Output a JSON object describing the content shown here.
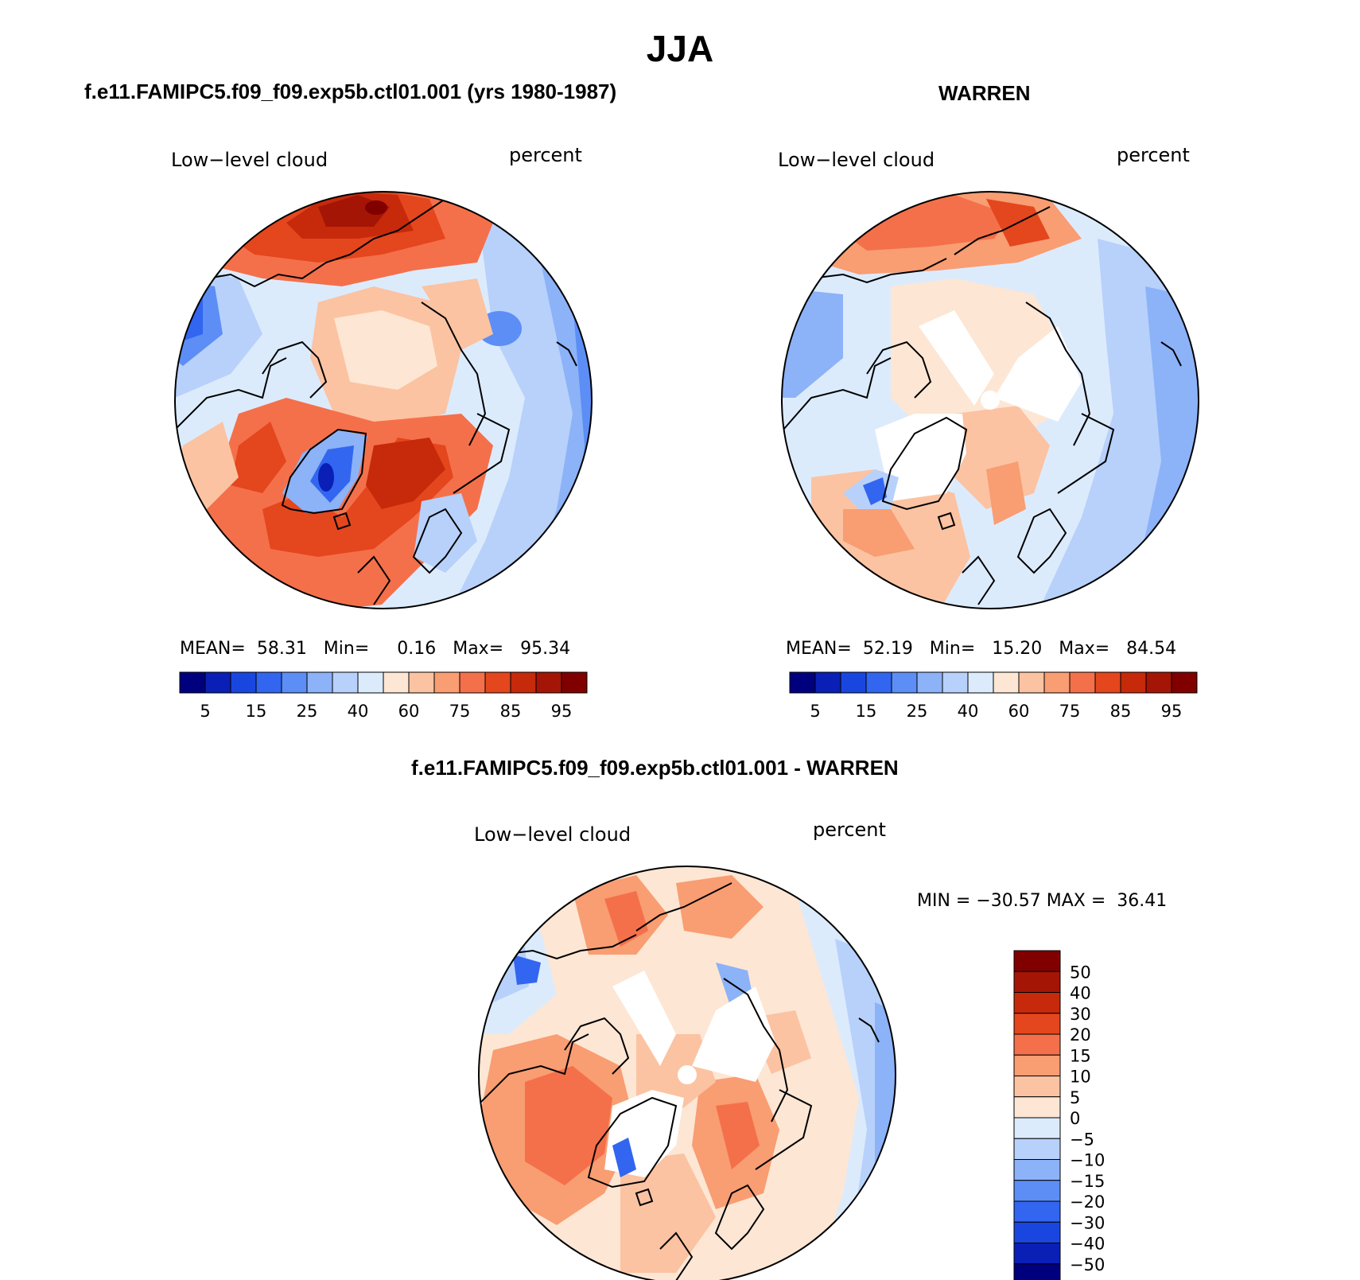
{
  "title": "JJA",
  "panels": [
    {
      "id": "model",
      "subtitle": "f.e11.FAMIPC5.f09_f09.exp5b.ctl01.001 (yrs 1980-1987)",
      "field_label": "Low−level cloud",
      "units_label": "percent",
      "stats": {
        "mean_label": "MEAN=",
        "mean": "58.31",
        "min_label": "Min=",
        "min": "0.16",
        "max_label": "Max=",
        "max": "95.34"
      },
      "colorbar_ticks": [
        "5",
        "15",
        "25",
        "40",
        "60",
        "75",
        "85",
        "95"
      ]
    },
    {
      "id": "obs",
      "subtitle": "WARREN",
      "field_label": "Low−level cloud",
      "units_label": "percent",
      "stats": {
        "mean_label": "MEAN=",
        "mean": "52.19",
        "min_label": "Min=",
        "min": "15.20",
        "max_label": "Max=",
        "max": "84.54"
      },
      "colorbar_ticks": [
        "5",
        "15",
        "25",
        "40",
        "60",
        "75",
        "85",
        "95"
      ]
    },
    {
      "id": "diff",
      "subtitle": "f.e11.FAMIPC5.f09_f09.exp5b.ctl01.001 - WARREN",
      "field_label": "Low−level cloud",
      "units_label": "percent",
      "stats_line": "MIN = −30.57 MAX =  36.41",
      "colorbar_ticks": [
        "50",
        "40",
        "30",
        "20",
        "15",
        "10",
        "5",
        "0",
        "−5",
        "−10",
        "−15",
        "−20",
        "−30",
        "−40",
        "−50"
      ]
    }
  ],
  "colors": {
    "abs_palette": [
      "#00007f",
      "#0a1fb5",
      "#1a46e0",
      "#3266f0",
      "#5c8ef5",
      "#8cb2f8",
      "#b7d1fb",
      "#dcebfc",
      "#fde6d4",
      "#fbc3a2",
      "#f99d72",
      "#f4704a",
      "#e4461e",
      "#c62a0a",
      "#a51505",
      "#800000"
    ],
    "diff_palette": [
      "#00007f",
      "#0a1fb5",
      "#1a46e0",
      "#3266f0",
      "#5c8ef5",
      "#8cb2f8",
      "#b7d1fb",
      "#dcebfc",
      "#fde6d4",
      "#fbc3a2",
      "#f99d72",
      "#f4704a",
      "#e4461e",
      "#c62a0a",
      "#a51505",
      "#800000"
    ]
  }
}
